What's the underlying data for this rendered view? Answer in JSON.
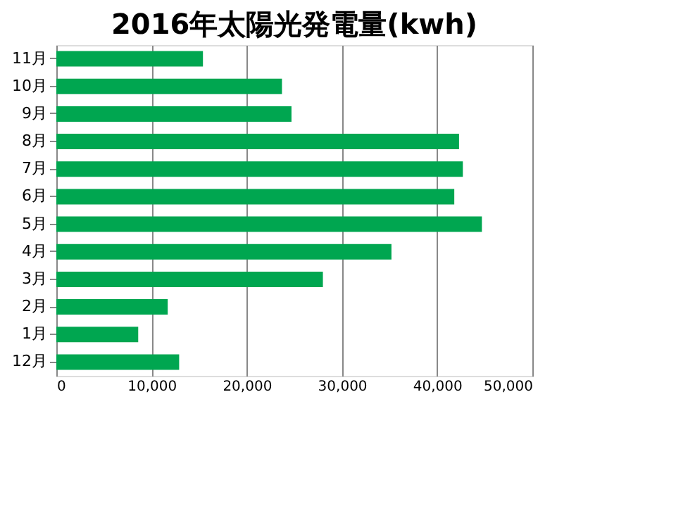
{
  "chart_data": {
    "type": "bar",
    "orientation": "horizontal",
    "title": "2016年太陽光発電量(kwh)",
    "categories": [
      "11月",
      "10月",
      "9月",
      "8月",
      "7月",
      "6月",
      "5月",
      "4月",
      "3月",
      "2月",
      "1月",
      "12月"
    ],
    "values": [
      15400,
      23700,
      24700,
      42300,
      42700,
      41800,
      44700,
      35200,
      28000,
      11700,
      8600,
      12900
    ],
    "color": "#00a650",
    "xlim": [
      0,
      50000
    ],
    "xticks": [
      {
        "value": 0,
        "label": "0"
      },
      {
        "value": 10000,
        "label": "10,000"
      },
      {
        "value": 20000,
        "label": "20,000"
      },
      {
        "value": 30000,
        "label": "30,000"
      },
      {
        "value": 40000,
        "label": "40,000"
      },
      {
        "value": 50000,
        "label": "50,000"
      }
    ],
    "grid": "x"
  }
}
